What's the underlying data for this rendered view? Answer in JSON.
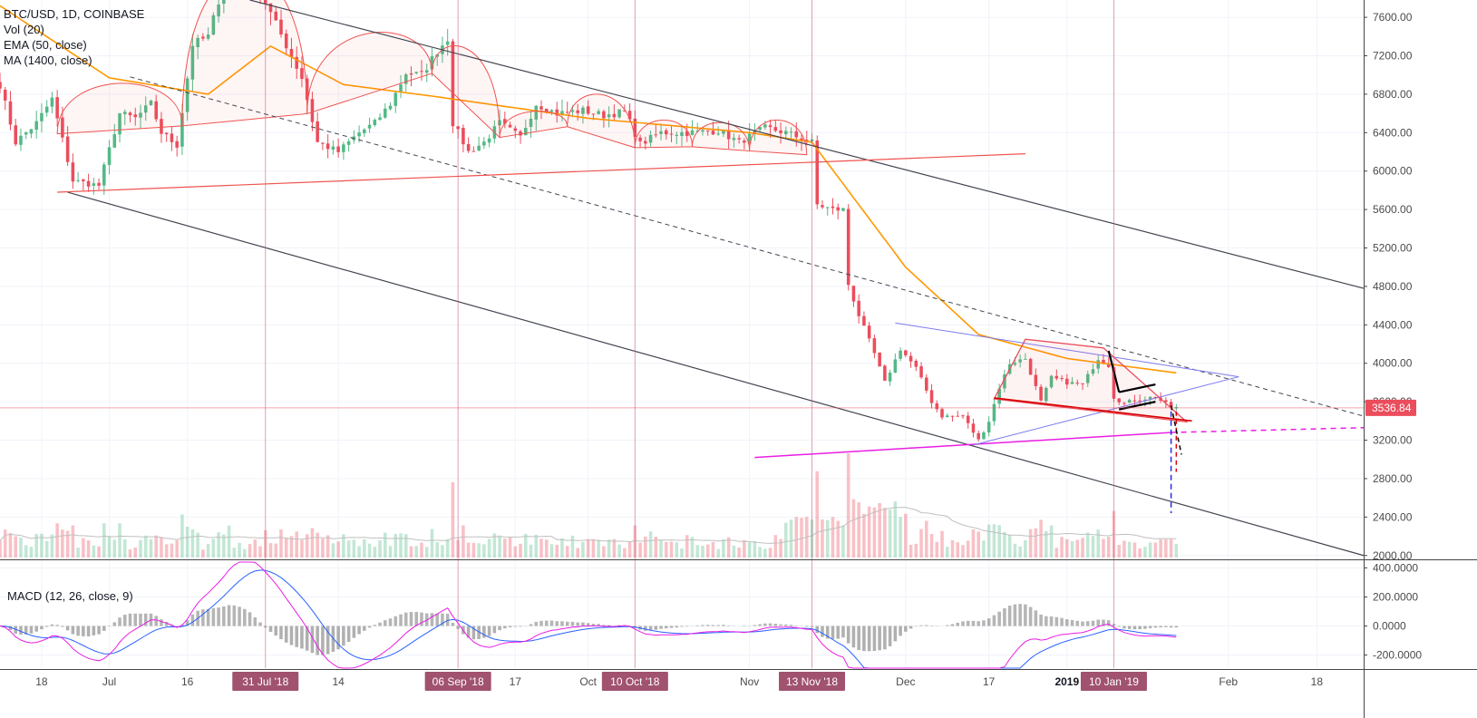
{
  "legend": {
    "symbol": "BTC/USD, 1D, COINBASE",
    "vol": "Vol (20)",
    "ema": "EMA (50, close)",
    "ma": "MA (1400, close)"
  },
  "macd_legend": "MACD (12, 26, close, 9)",
  "colors": {
    "up": "#53b987",
    "down": "#eb4d5c",
    "ema": "#ff9800",
    "channel": "#434651",
    "arc": "#ef5350",
    "magenta": "#e91ee3",
    "wedge": "#7b7bf0",
    "marker": "#a0526f",
    "macd": "#2962ff",
    "signal": "#e91ee3",
    "hist": "#9e9e9e"
  },
  "chart_data": {
    "type": "candlestick",
    "symbol": "BTC/USD",
    "interval": "1D",
    "exchange": "COINBASE",
    "last_price": "3536.84",
    "price_axis": {
      "ticks": [
        "7600.00",
        "7200.00",
        "6800.00",
        "6400.00",
        "6000.00",
        "5600.00",
        "5200.00",
        "4800.00",
        "4400.00",
        "4000.00",
        "3600.00",
        "3200.00",
        "2800.00",
        "2400.00",
        "2000.00"
      ],
      "range": [
        1960,
        7780
      ]
    },
    "macd_axis": {
      "ticks": [
        "400.0000",
        "200.0000",
        "0.0000",
        "-200.0000"
      ],
      "range": [
        -290,
        440
      ]
    },
    "time_axis": {
      "range": [
        "2018-06-10",
        "2019-02-27"
      ],
      "labels": [
        {
          "date": "2018-06-18",
          "text": "18"
        },
        {
          "date": "2018-07-01",
          "text": "Jul"
        },
        {
          "date": "2018-07-16",
          "text": "16"
        },
        {
          "date": "2018-08-14",
          "text": "14"
        },
        {
          "date": "2018-09-17",
          "text": "17"
        },
        {
          "date": "2018-10-01",
          "text": "Oct"
        },
        {
          "date": "2018-11-01",
          "text": "Nov"
        },
        {
          "date": "2018-12-01",
          "text": "Dec"
        },
        {
          "date": "2018-12-17",
          "text": "17"
        },
        {
          "date": "2019-01-01",
          "text": "2019",
          "bold": true
        },
        {
          "date": "2019-02-01",
          "text": "Feb"
        },
        {
          "date": "2019-02-18",
          "text": "18"
        }
      ]
    },
    "date_markers": [
      {
        "date": "2018-07-31",
        "text": "31 Jul '18"
      },
      {
        "date": "2018-09-06",
        "text": "06 Sep '18"
      },
      {
        "date": "2018-10-10",
        "text": "10 Oct '18"
      },
      {
        "date": "2018-11-13",
        "text": "13 Nov '18"
      },
      {
        "date": "2019-01-10",
        "text": "10 Jan '19"
      }
    ],
    "close_anchors": [
      [
        "2018-06-10",
        6900
      ],
      [
        "2018-06-13",
        6300
      ],
      [
        "2018-06-17",
        6500
      ],
      [
        "2018-06-20",
        6750
      ],
      [
        "2018-06-24",
        5900
      ],
      [
        "2018-06-29",
        5850
      ],
      [
        "2018-07-03",
        6600
      ],
      [
        "2018-07-06",
        6550
      ],
      [
        "2018-07-09",
        6700
      ],
      [
        "2018-07-11",
        6400
      ],
      [
        "2018-07-14",
        6270
      ],
      [
        "2018-07-17",
        7320
      ],
      [
        "2018-07-20",
        7400
      ],
      [
        "2018-07-24",
        8150
      ],
      [
        "2018-07-27",
        8250
      ],
      [
        "2018-07-31",
        7750
      ],
      [
        "2018-08-03",
        7420
      ],
      [
        "2018-08-07",
        6970
      ],
      [
        "2018-08-10",
        6300
      ],
      [
        "2018-08-14",
        6200
      ],
      [
        "2018-08-18",
        6400
      ],
      [
        "2018-08-21",
        6500
      ],
      [
        "2018-08-24",
        6700
      ],
      [
        "2018-08-27",
        7020
      ],
      [
        "2018-08-30",
        7000
      ],
      [
        "2018-09-02",
        7250
      ],
      [
        "2018-09-04",
        7380
      ],
      [
        "2018-09-05",
        6500
      ],
      [
        "2018-09-08",
        6200
      ],
      [
        "2018-09-11",
        6300
      ],
      [
        "2018-09-14",
        6500
      ],
      [
        "2018-09-18",
        6350
      ],
      [
        "2018-09-21",
        6700
      ],
      [
        "2018-09-25",
        6600
      ],
      [
        "2018-09-30",
        6630
      ],
      [
        "2018-10-04",
        6580
      ],
      [
        "2018-10-08",
        6620
      ],
      [
        "2018-10-11",
        6280
      ],
      [
        "2018-10-15",
        6400
      ],
      [
        "2018-10-20",
        6400
      ],
      [
        "2018-10-26",
        6420
      ],
      [
        "2018-10-30",
        6300
      ],
      [
        "2018-11-04",
        6450
      ],
      [
        "2018-11-08",
        6400
      ],
      [
        "2018-11-13",
        6300
      ],
      [
        "2018-11-14",
        5650
      ],
      [
        "2018-11-17",
        5600
      ],
      [
        "2018-11-19",
        5600
      ],
      [
        "2018-11-20",
        4820
      ],
      [
        "2018-11-22",
        4500
      ],
      [
        "2018-11-25",
        4100
      ],
      [
        "2018-11-27",
        3800
      ],
      [
        "2018-11-30",
        4150
      ],
      [
        "2018-12-03",
        3950
      ],
      [
        "2018-12-06",
        3600
      ],
      [
        "2018-12-08",
        3450
      ],
      [
        "2018-12-12",
        3450
      ],
      [
        "2018-12-15",
        3200
      ],
      [
        "2018-12-17",
        3400
      ],
      [
        "2018-12-19",
        3750
      ],
      [
        "2018-12-21",
        4000
      ],
      [
        "2018-12-24",
        4050
      ],
      [
        "2018-12-27",
        3600
      ],
      [
        "2018-12-29",
        3850
      ],
      [
        "2019-01-01",
        3800
      ],
      [
        "2019-01-04",
        3780
      ],
      [
        "2019-01-07",
        4050
      ],
      [
        "2019-01-09",
        3980
      ],
      [
        "2019-01-10",
        3650
      ],
      [
        "2019-01-12",
        3580
      ],
      [
        "2019-01-14",
        3620
      ],
      [
        "2019-01-18",
        3650
      ],
      [
        "2019-01-21",
        3540
      ],
      [
        "2019-01-22",
        3537
      ]
    ],
    "ema50_anchors": [
      [
        "2018-06-10",
        7720
      ],
      [
        "2018-07-01",
        6970
      ],
      [
        "2018-07-20",
        6800
      ],
      [
        "2018-08-01",
        7300
      ],
      [
        "2018-08-15",
        6900
      ],
      [
        "2018-09-01",
        6780
      ],
      [
        "2018-10-01",
        6550
      ],
      [
        "2018-11-01",
        6400
      ],
      [
        "2018-11-13",
        6300
      ],
      [
        "2018-12-01",
        5000
      ],
      [
        "2018-12-15",
        4300
      ],
      [
        "2019-01-01",
        4050
      ],
      [
        "2019-01-22",
        3900
      ]
    ],
    "drawings": {
      "channel_upper": [
        [
          "2018-07-28",
          7780
        ],
        [
          "2019-02-27",
          4780
        ]
      ],
      "channel_lower": [
        [
          "2018-06-23",
          5780
        ],
        [
          "2019-02-27",
          2000
        ]
      ],
      "diagonal_dashed": [
        [
          "2018-07-05",
          6980
        ],
        [
          "2019-02-27",
          3450
        ]
      ],
      "support_line": [
        [
          "2018-06-21",
          5780
        ],
        [
          "2018-12-24",
          6180
        ]
      ],
      "magenta_line": [
        [
          "2018-11-02",
          3020
        ],
        [
          "2019-01-21",
          3280
        ]
      ],
      "magenta_dashed": [
        [
          "2019-01-21",
          3280
        ],
        [
          "2019-02-27",
          3330
        ]
      ],
      "blue_wedge_top": [
        [
          "2018-11-29",
          4420
        ],
        [
          "2019-02-03",
          3860
        ]
      ],
      "blue_wedge_bottom": [
        [
          "2018-12-14",
          3150
        ],
        [
          "2019-02-03",
          3860
        ]
      ],
      "red_head": [
        [
          "2018-12-18",
          3630
        ],
        [
          "2018-12-24",
          4250
        ],
        [
          "2019-01-08",
          4160
        ],
        [
          "2019-01-24",
          3390
        ]
      ],
      "red_lower_line": [
        [
          "2018-12-18",
          3640
        ],
        [
          "2019-01-25",
          3400
        ]
      ],
      "black_lines": [
        [
          [
            "2019-01-11",
            3700
          ],
          [
            "2019-01-18",
            3780
          ]
        ],
        [
          [
            "2019-01-11",
            3520
          ],
          [
            "2019-01-18",
            3600
          ]
        ],
        [
          [
            "2019-01-09",
            4130
          ],
          [
            "2019-01-11",
            3700
          ]
        ]
      ],
      "projection_dashed": [
        [
          [
            "2019-01-21",
            3500
          ],
          [
            "2019-01-21",
            2440
          ]
        ],
        [
          [
            "2019-01-22",
            3500
          ],
          [
            "2019-01-22",
            2870
          ]
        ],
        [
          [
            "2019-01-21",
            3560
          ],
          [
            "2019-01-23",
            3050
          ]
        ]
      ],
      "arcs": [
        [
          "2018-06-21",
          "2018-07-15",
          6980
        ],
        [
          "2018-07-15",
          "2018-08-08",
          8500
        ],
        [
          "2018-08-08",
          "2018-09-01",
          7550
        ],
        [
          "2018-09-01",
          "2018-09-14",
          7380
        ],
        [
          "2018-09-14",
          "2018-09-27",
          6600
        ],
        [
          "2018-09-27",
          "2018-10-10",
          6850
        ],
        [
          "2018-10-10",
          "2018-10-21",
          6530
        ],
        [
          "2018-10-21",
          "2018-11-01",
          6500
        ],
        [
          "2018-11-01",
          "2018-11-12",
          6550
        ]
      ]
    },
    "volume_note": "Volume bars colored by candle direction with 20-day moving average",
    "macd": {
      "fast": 12,
      "slow": 26,
      "signal": 9
    }
  }
}
